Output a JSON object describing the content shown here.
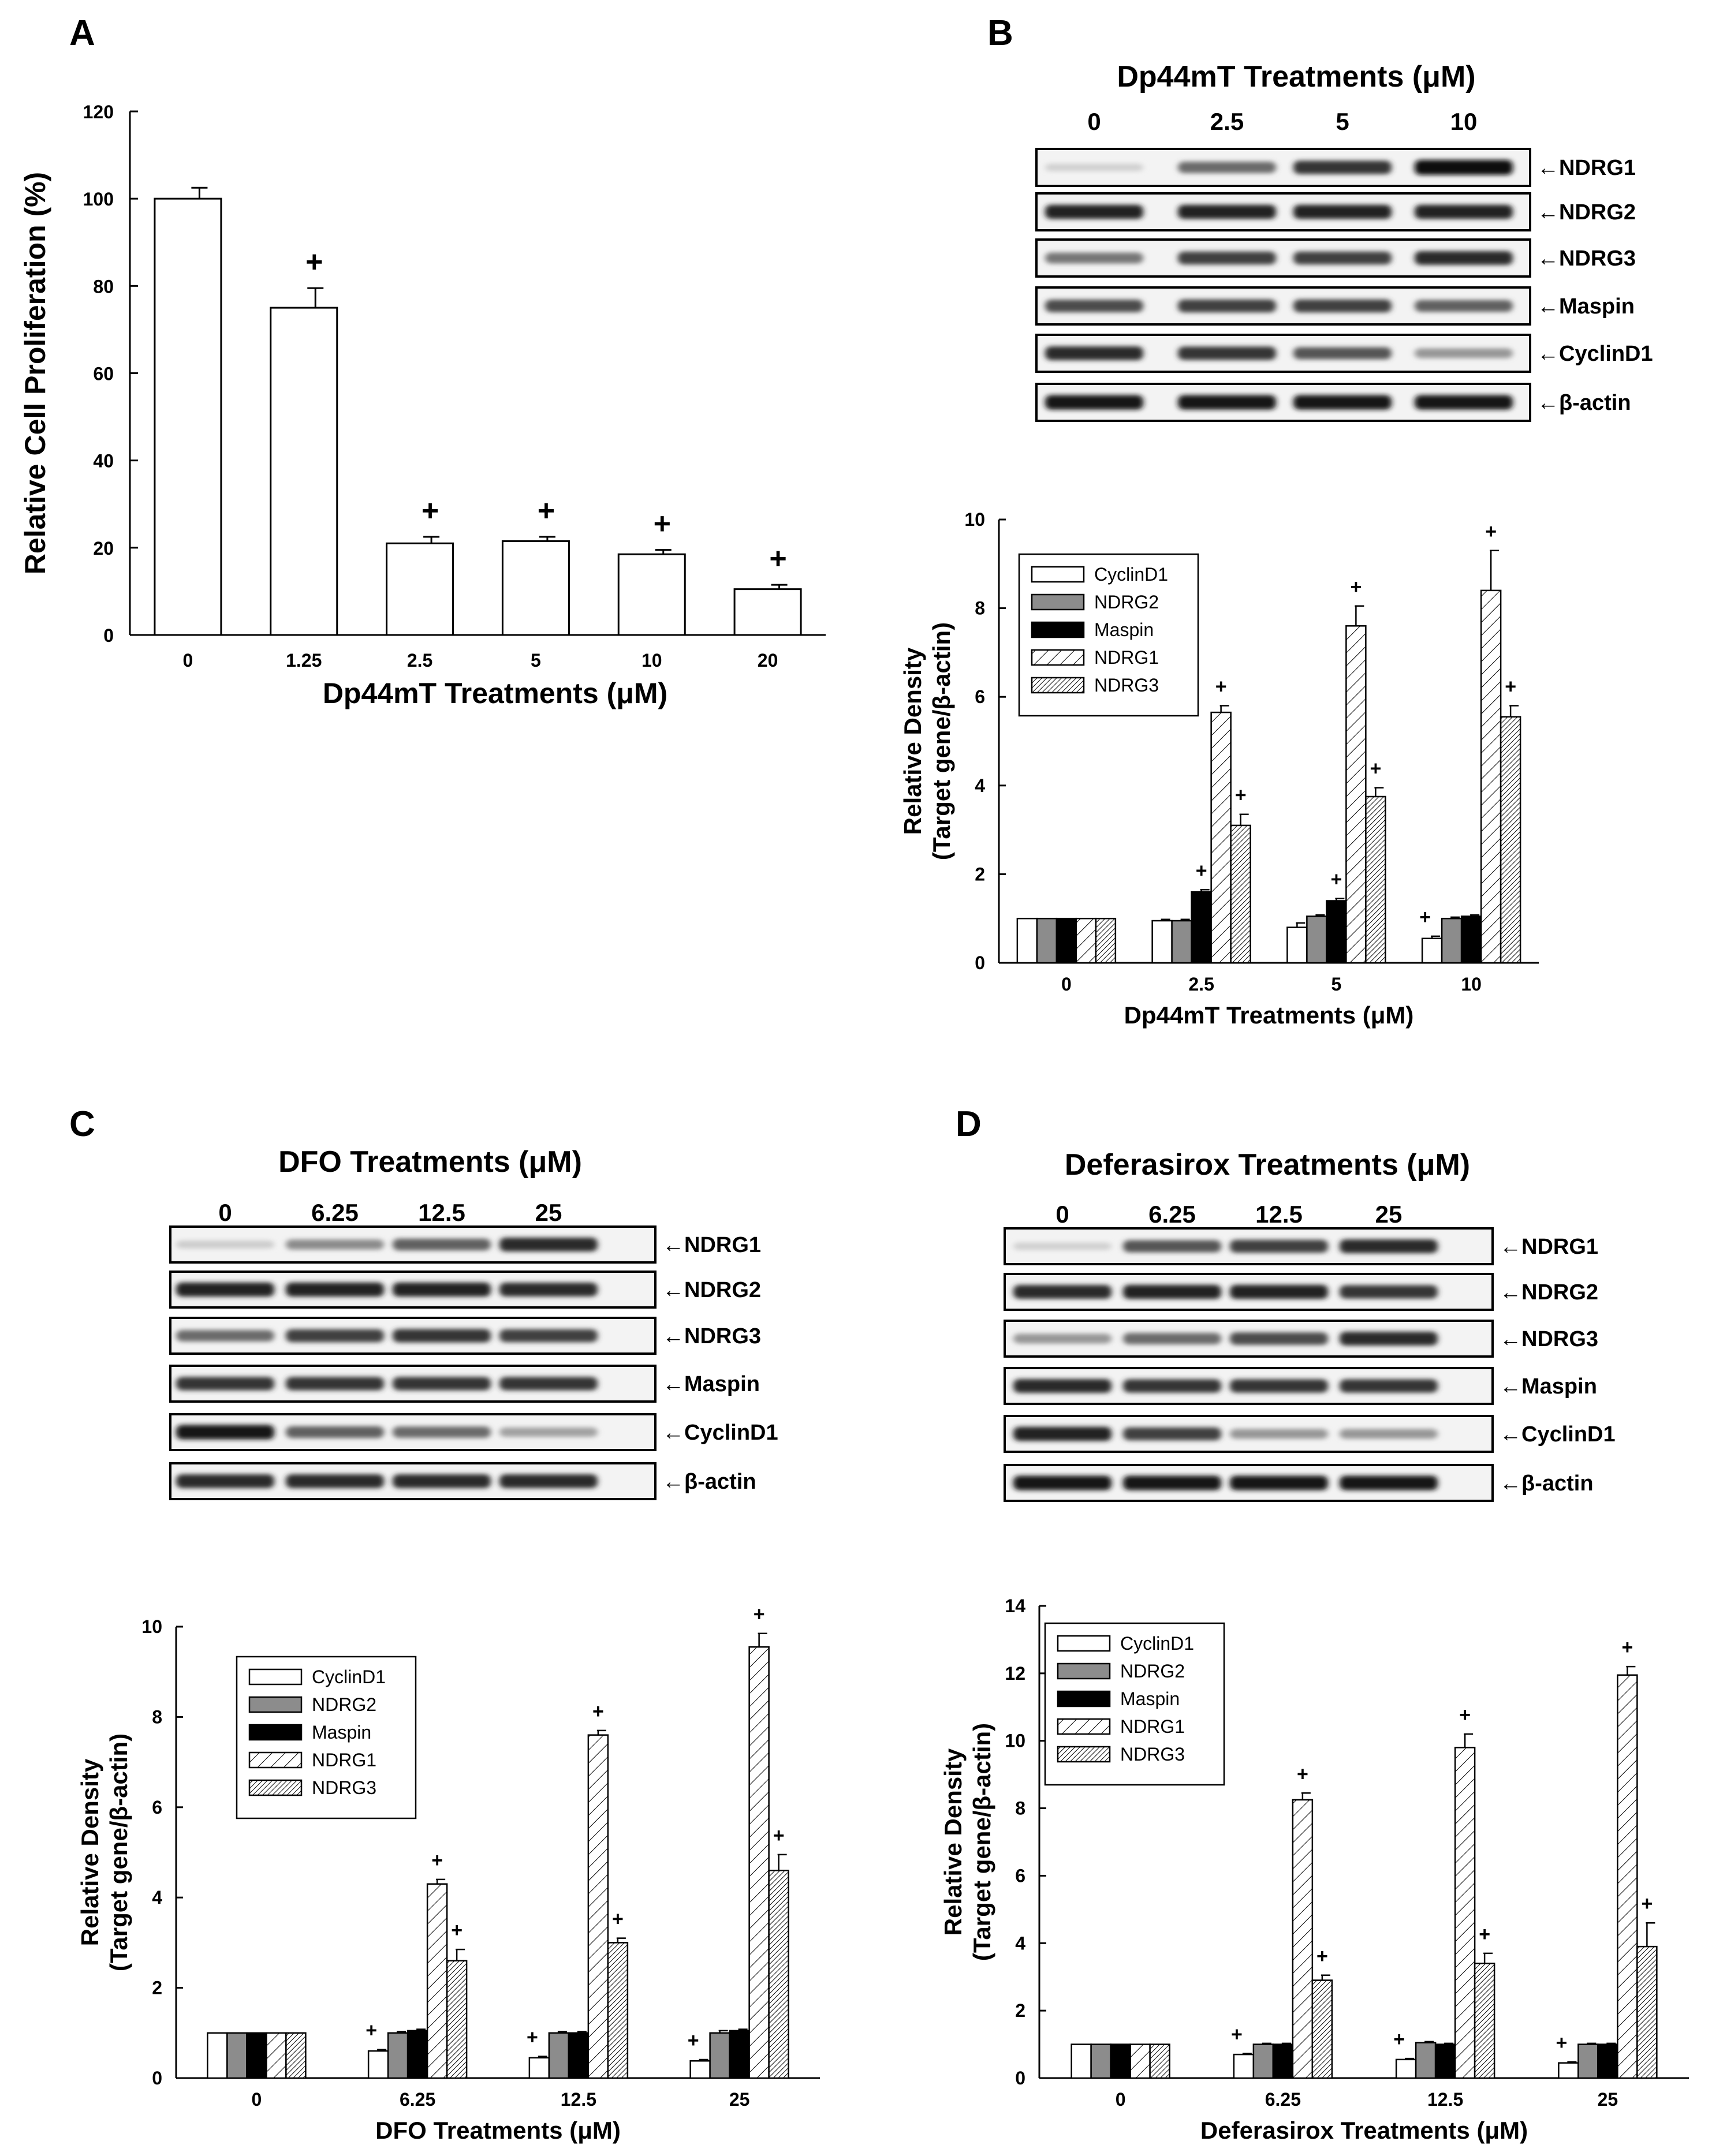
{
  "panels": {
    "A": {
      "letter": "A"
    },
    "B": {
      "letter": "B",
      "blot_title": "Dp44mT Treatments (μM)",
      "lanes": [
        "0",
        "2.5",
        "5",
        "10"
      ],
      "bands": [
        "←NDRG1",
        "←NDRG2",
        "←NDRG3",
        "←Maspin",
        "←CyclinD1",
        "←β-actin"
      ]
    },
    "C": {
      "letter": "C",
      "blot_title": "DFO Treatments (μM)",
      "lanes": [
        "0",
        "6.25",
        "12.5",
        "25"
      ],
      "bands": [
        "←NDRG1",
        "←NDRG2",
        "←NDRG3",
        "←Maspin",
        "←CyclinD1",
        "←β-actin"
      ]
    },
    "D": {
      "letter": "D",
      "blot_title": "Deferasirox Treatments (μM)",
      "lanes": [
        "0",
        "6.25",
        "12.5",
        "25"
      ],
      "bands": [
        "←NDRG1",
        "←NDRG2",
        "←NDRG3",
        "←Maspin",
        "←CyclinD1",
        "←β-actin"
      ]
    }
  },
  "colors": {
    "bar_outline": "#000000",
    "gray": "#8c8c8c",
    "black": "#000000",
    "white": "#ffffff"
  },
  "chart_data": [
    {
      "id": "A",
      "type": "bar",
      "title": "",
      "xlabel": "Dp44mT Treatments (μM)",
      "ylabel": "Relative Cell Proliferation (%)",
      "ylim": [
        0,
        120
      ],
      "yticks": [
        "0",
        "20",
        "40",
        "60",
        "80",
        "100",
        "120"
      ],
      "categories": [
        "0",
        "1.25",
        "2.5",
        "5",
        "10",
        "20"
      ],
      "values": [
        100,
        75,
        21,
        21.5,
        18.5,
        10.5
      ],
      "errors": [
        2.5,
        4.5,
        1.5,
        1,
        1,
        1
      ],
      "significance": [
        "",
        "+",
        "+",
        "+",
        "+",
        "+"
      ],
      "legend": []
    },
    {
      "id": "B",
      "type": "bar",
      "xlabel": "Dp44mT Treatments (μM)",
      "ylabel": "Relative Density",
      "ylabel2": "(Target gene/β-actin)",
      "ylim": [
        0,
        10
      ],
      "yticks": [
        "0",
        "2",
        "4",
        "6",
        "8",
        "10"
      ],
      "categories": [
        "0",
        "2.5",
        "5",
        "10"
      ],
      "series": [
        {
          "name": "CyclinD1",
          "style": "white",
          "values": [
            1,
            0.95,
            0.8,
            0.55
          ],
          "errors": [
            0,
            0.03,
            0.1,
            0.05
          ],
          "sig": [
            "",
            "",
            "",
            "+"
          ]
        },
        {
          "name": "NDRG2",
          "style": "gray",
          "values": [
            1,
            0.95,
            1.05,
            1
          ],
          "errors": [
            0,
            0.03,
            0.03,
            0.03
          ],
          "sig": [
            "",
            "",
            "",
            ""
          ]
        },
        {
          "name": "Maspin",
          "style": "black",
          "values": [
            1,
            1.6,
            1.4,
            1.05
          ],
          "errors": [
            0,
            0.05,
            0.05,
            0.03
          ],
          "sig": [
            "",
            "+",
            "+",
            ""
          ]
        },
        {
          "name": "NDRG1",
          "style": "hatch-sparse",
          "values": [
            1,
            5.65,
            7.6,
            8.4
          ],
          "errors": [
            0,
            0.15,
            0.45,
            0.9
          ],
          "sig": [
            "",
            "+",
            "+",
            "+"
          ]
        },
        {
          "name": "NDRG3",
          "style": "hatch-dense",
          "values": [
            1,
            3.1,
            3.75,
            5.55
          ],
          "errors": [
            0,
            0.25,
            0.2,
            0.25
          ],
          "sig": [
            "",
            "+",
            "+",
            "+"
          ]
        }
      ]
    },
    {
      "id": "C",
      "type": "bar",
      "xlabel": "DFO Treatments (μM)",
      "ylabel": "Relative Density",
      "ylabel2": "(Target gene/β-actin)",
      "ylim": [
        0,
        10
      ],
      "yticks": [
        "0",
        "2",
        "4",
        "6",
        "8",
        "10"
      ],
      "categories": [
        "0",
        "6.25",
        "12.5",
        "25"
      ],
      "series": [
        {
          "name": "CyclinD1",
          "style": "white",
          "values": [
            1,
            0.6,
            0.45,
            0.38
          ],
          "errors": [
            0,
            0.03,
            0.03,
            0.03
          ],
          "sig": [
            "",
            "+",
            "+",
            "+"
          ]
        },
        {
          "name": "NDRG2",
          "style": "gray",
          "values": [
            1,
            1,
            1,
            1
          ],
          "errors": [
            0,
            0.03,
            0.03,
            0.05
          ],
          "sig": [
            "",
            "",
            "",
            ""
          ]
        },
        {
          "name": "Maspin",
          "style": "black",
          "values": [
            1,
            1.05,
            1,
            1.05
          ],
          "errors": [
            0,
            0.03,
            0.03,
            0.03
          ],
          "sig": [
            "",
            "",
            "",
            ""
          ]
        },
        {
          "name": "NDRG1",
          "style": "hatch-sparse",
          "values": [
            1,
            4.3,
            7.6,
            9.55
          ],
          "errors": [
            0,
            0.1,
            0.1,
            0.3
          ],
          "sig": [
            "",
            "+",
            "+",
            "+"
          ]
        },
        {
          "name": "NDRG3",
          "style": "hatch-dense",
          "values": [
            1,
            2.6,
            3,
            4.6
          ],
          "errors": [
            0,
            0.25,
            0.1,
            0.35
          ],
          "sig": [
            "",
            "+",
            "+",
            "+"
          ]
        }
      ]
    },
    {
      "id": "D",
      "type": "bar",
      "xlabel": "Deferasirox Treatments (μM)",
      "ylabel": "Relative Density",
      "ylabel2": "(Target gene/β-actin)",
      "ylim": [
        0,
        14
      ],
      "yticks": [
        "0",
        "2",
        "4",
        "6",
        "8",
        "10",
        "12",
        "14"
      ],
      "categories": [
        "0",
        "6.25",
        "12.5",
        "25"
      ],
      "series": [
        {
          "name": "CyclinD1",
          "style": "white",
          "values": [
            1,
            0.7,
            0.55,
            0.45
          ],
          "errors": [
            0,
            0.03,
            0.03,
            0.03
          ],
          "sig": [
            "",
            "+",
            "+",
            "+"
          ]
        },
        {
          "name": "NDRG2",
          "style": "gray",
          "values": [
            1,
            1,
            1.05,
            1
          ],
          "errors": [
            0,
            0.03,
            0.03,
            0.03
          ],
          "sig": [
            "",
            "",
            "",
            ""
          ]
        },
        {
          "name": "Maspin",
          "style": "black",
          "values": [
            1,
            1,
            1,
            1
          ],
          "errors": [
            0,
            0.03,
            0.03,
            0.03
          ],
          "sig": [
            "",
            "",
            "",
            ""
          ]
        },
        {
          "name": "NDRG1",
          "style": "hatch-sparse",
          "values": [
            1,
            8.25,
            9.8,
            11.95
          ],
          "errors": [
            0,
            0.2,
            0.4,
            0.25
          ],
          "sig": [
            "",
            "+",
            "+",
            "+"
          ]
        },
        {
          "name": "NDRG3",
          "style": "hatch-dense",
          "values": [
            1,
            2.9,
            3.4,
            3.9
          ],
          "errors": [
            0,
            0.15,
            0.3,
            0.7
          ],
          "sig": [
            "",
            "+",
            "+",
            "+"
          ]
        }
      ]
    }
  ],
  "blot_intensity": {
    "B": [
      [
        0.08,
        0.55,
        0.8,
        1.0
      ],
      [
        0.9,
        0.9,
        0.9,
        0.9
      ],
      [
        0.5,
        0.75,
        0.75,
        0.85
      ],
      [
        0.7,
        0.75,
        0.75,
        0.6
      ],
      [
        0.85,
        0.8,
        0.65,
        0.35
      ],
      [
        0.95,
        0.95,
        0.95,
        0.95
      ]
    ],
    "C": [
      [
        0.1,
        0.4,
        0.6,
        0.85
      ],
      [
        0.9,
        0.9,
        0.9,
        0.85
      ],
      [
        0.55,
        0.75,
        0.8,
        0.75
      ],
      [
        0.8,
        0.8,
        0.8,
        0.8
      ],
      [
        0.95,
        0.6,
        0.55,
        0.3
      ],
      [
        0.85,
        0.85,
        0.85,
        0.85
      ]
    ],
    "D": [
      [
        0.08,
        0.65,
        0.75,
        0.85
      ],
      [
        0.85,
        0.9,
        0.9,
        0.8
      ],
      [
        0.35,
        0.55,
        0.7,
        0.85
      ],
      [
        0.85,
        0.8,
        0.8,
        0.8
      ],
      [
        0.9,
        0.75,
        0.35,
        0.35
      ],
      [
        0.95,
        0.95,
        0.95,
        0.95
      ]
    ]
  }
}
